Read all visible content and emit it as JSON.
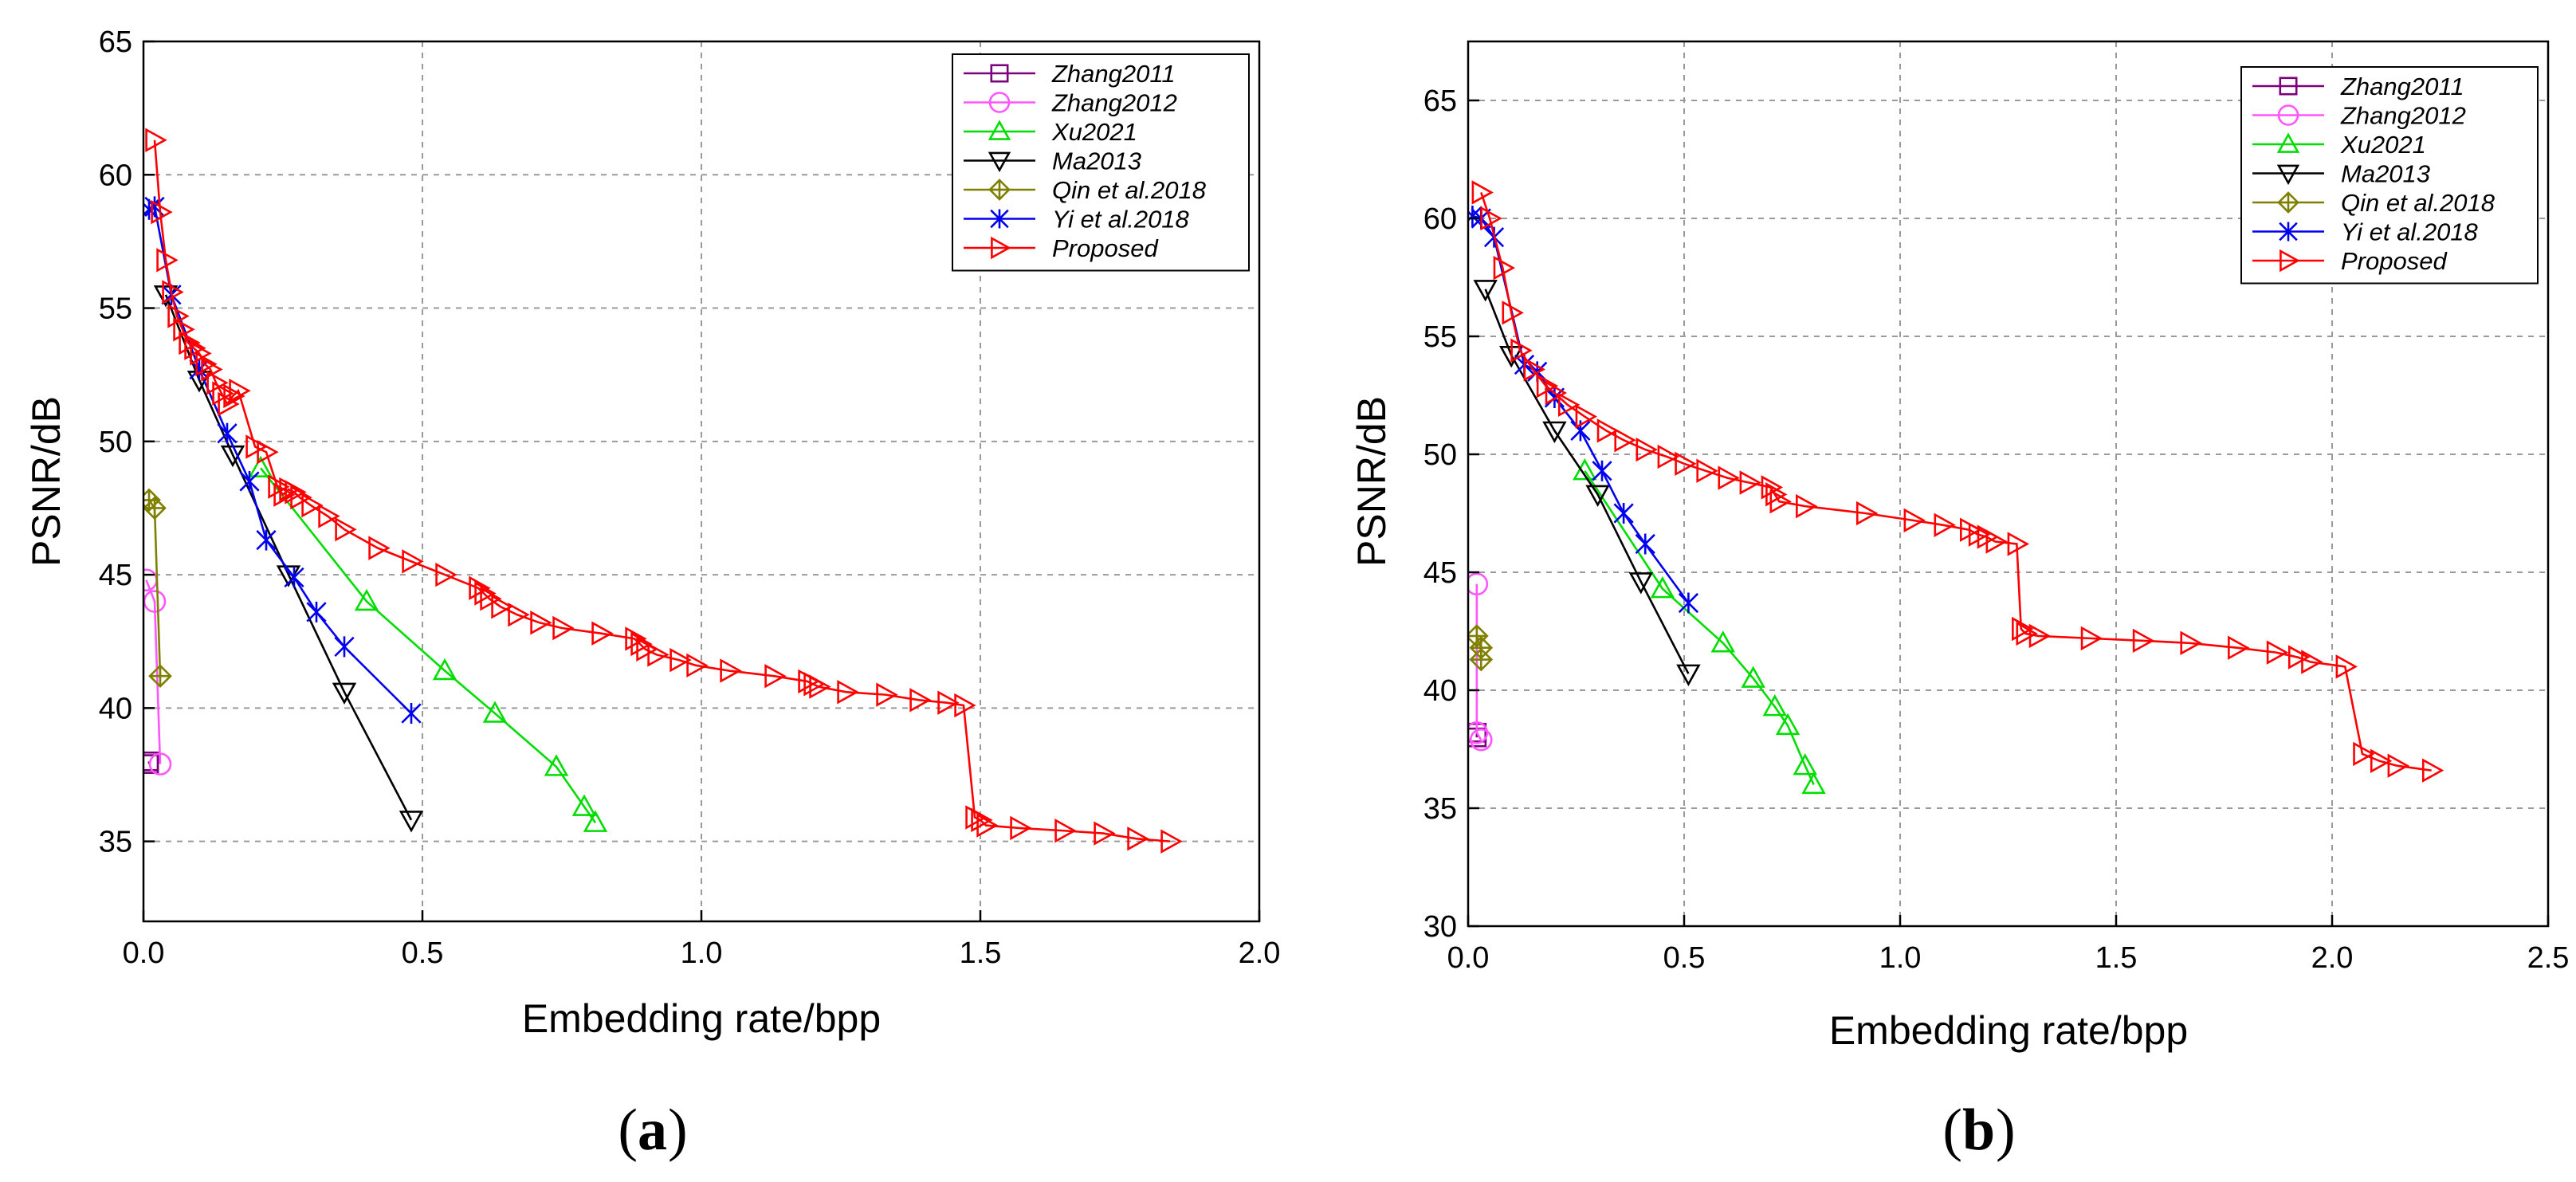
{
  "chart_data": [
    {
      "type": "line",
      "panel_label": "a",
      "xlabel": "Embedding rate/bpp",
      "ylabel": "PSNR/dB",
      "xlim": [
        0,
        2.0
      ],
      "ylim": [
        32,
        65
      ],
      "xticks": [
        0,
        0.5,
        1.0,
        1.5,
        2.0
      ],
      "xtick_labels": [
        "0.0",
        "0.5",
        "1.0",
        "1.5",
        "2.0"
      ],
      "yticks": [
        35,
        40,
        45,
        50,
        55,
        60,
        65
      ],
      "ytick_labels": [
        "35",
        "40",
        "45",
        "50",
        "55",
        "60",
        "65"
      ],
      "grid": true,
      "legend_position": "top-right",
      "series": [
        {
          "name": "Zhang2011",
          "color": "#7b007b",
          "marker": "square",
          "x": [
            0.01,
            0.01
          ],
          "y": [
            38.0,
            37.9
          ]
        },
        {
          "name": "Zhang2012",
          "color": "#ff55ff",
          "marker": "circle",
          "x": [
            0.005,
            0.02,
            0.03
          ],
          "y": [
            44.8,
            44.0,
            37.9
          ]
        },
        {
          "name": "Xu2021",
          "color": "#00dd00",
          "marker": "triangle-up",
          "x": [
            0.21,
            0.4,
            0.54,
            0.63,
            0.74,
            0.79,
            0.81
          ],
          "y": [
            49.0,
            44.0,
            41.4,
            39.8,
            37.8,
            36.3,
            35.7
          ]
        },
        {
          "name": "Ma2013",
          "color": "#000000",
          "marker": "triangle-down",
          "x": [
            0.04,
            0.1,
            0.16,
            0.26,
            0.36,
            0.48
          ],
          "y": [
            55.5,
            52.3,
            49.5,
            45.0,
            40.6,
            35.8
          ]
        },
        {
          "name": "Qin et al.2018",
          "color": "#808000",
          "marker": "diamond-plus",
          "x": [
            0.01,
            0.02,
            0.03
          ],
          "y": [
            47.8,
            47.5,
            41.2
          ]
        },
        {
          "name": "Yi et al.2018",
          "color": "#0000ee",
          "marker": "star",
          "x": [
            0.01,
            0.02,
            0.05,
            0.1,
            0.15,
            0.19,
            0.22,
            0.27,
            0.31,
            0.36,
            0.48
          ],
          "y": [
            58.7,
            58.8,
            55.5,
            52.7,
            50.3,
            48.5,
            46.3,
            44.9,
            43.6,
            42.3,
            39.8
          ]
        },
        {
          "name": "Proposed",
          "color": "#ff0000",
          "marker": "triangle-right",
          "x": [
            0.02,
            0.03,
            0.04,
            0.05,
            0.06,
            0.07,
            0.08,
            0.09,
            0.1,
            0.11,
            0.12,
            0.13,
            0.14,
            0.15,
            0.16,
            0.17,
            0.2,
            0.22,
            0.24,
            0.25,
            0.26,
            0.27,
            0.28,
            0.3,
            0.33,
            0.36,
            0.42,
            0.48,
            0.54,
            0.6,
            0.61,
            0.62,
            0.64,
            0.67,
            0.71,
            0.75,
            0.82,
            0.88,
            0.89,
            0.9,
            0.92,
            0.96,
            0.99,
            1.05,
            1.13,
            1.19,
            1.2,
            1.21,
            1.26,
            1.33,
            1.39,
            1.44,
            1.47,
            1.49,
            1.5,
            1.51,
            1.57,
            1.65,
            1.72,
            1.78,
            1.84
          ],
          "y": [
            61.3,
            58.6,
            56.8,
            55.6,
            54.7,
            54.2,
            53.7,
            53.5,
            53.3,
            52.9,
            52.7,
            52.2,
            51.8,
            51.4,
            51.7,
            51.9,
            49.8,
            49.6,
            48.3,
            48.0,
            48.2,
            48.1,
            47.9,
            47.6,
            47.2,
            46.7,
            46.0,
            45.5,
            45.0,
            44.5,
            44.3,
            44.1,
            43.8,
            43.5,
            43.2,
            43.0,
            42.8,
            42.6,
            42.4,
            42.2,
            42.0,
            41.8,
            41.6,
            41.4,
            41.2,
            41.0,
            40.9,
            40.8,
            40.6,
            40.5,
            40.3,
            40.2,
            40.1,
            35.9,
            35.8,
            35.6,
            35.5,
            35.4,
            35.3,
            35.1,
            35.0
          ]
        }
      ]
    },
    {
      "type": "line",
      "panel_label": "b",
      "xlabel": "Embedding rate/bpp",
      "ylabel": "PSNR/dB",
      "xlim": [
        0,
        2.5
      ],
      "ylim": [
        30,
        67.5
      ],
      "xticks": [
        0,
        0.5,
        1.0,
        1.5,
        2.0,
        2.5
      ],
      "xtick_labels": [
        "0.0",
        "0.5",
        "1.0",
        "1.5",
        "2.0",
        "2.5"
      ],
      "yticks": [
        30,
        35,
        40,
        45,
        50,
        55,
        60,
        65
      ],
      "ytick_labels": [
        "30",
        "35",
        "40",
        "45",
        "50",
        "55",
        "60",
        "65"
      ],
      "grid": true,
      "legend_position": "top-right",
      "series": [
        {
          "name": "Zhang2011",
          "color": "#7b007b",
          "marker": "square",
          "x": [
            0.02,
            0.02
          ],
          "y": [
            38.2,
            38.0
          ]
        },
        {
          "name": "Zhang2012",
          "color": "#ff55ff",
          "marker": "circle",
          "x": [
            0.02,
            0.02,
            0.03
          ],
          "y": [
            44.5,
            38.2,
            37.9
          ]
        },
        {
          "name": "Xu2021",
          "color": "#00dd00",
          "marker": "triangle-up",
          "x": [
            0.27,
            0.45,
            0.59,
            0.66,
            0.71,
            0.74,
            0.78,
            0.8
          ],
          "y": [
            49.3,
            44.3,
            42.0,
            40.5,
            39.3,
            38.5,
            36.8,
            36.0
          ]
        },
        {
          "name": "Ma2013",
          "color": "#000000",
          "marker": "triangle-down",
          "x": [
            0.04,
            0.1,
            0.2,
            0.3,
            0.4,
            0.51
          ],
          "y": [
            57.0,
            54.2,
            51.0,
            48.3,
            44.6,
            40.7
          ]
        },
        {
          "name": "Qin et al.2018",
          "color": "#808000",
          "marker": "diamond-plus",
          "x": [
            0.02,
            0.03,
            0.03
          ],
          "y": [
            42.3,
            41.8,
            41.3
          ]
        },
        {
          "name": "Yi et al.2018",
          "color": "#0000ee",
          "marker": "star",
          "x": [
            0.01,
            0.03,
            0.06,
            0.13,
            0.16,
            0.2,
            0.26,
            0.31,
            0.36,
            0.41,
            0.51
          ],
          "y": [
            60.1,
            60.0,
            59.2,
            53.8,
            53.5,
            52.4,
            51.0,
            49.3,
            47.5,
            46.2,
            43.7
          ]
        },
        {
          "name": "Proposed",
          "color": "#ff0000",
          "marker": "triangle-right",
          "x": [
            0.03,
            0.05,
            0.08,
            0.1,
            0.12,
            0.15,
            0.18,
            0.2,
            0.23,
            0.27,
            0.32,
            0.36,
            0.41,
            0.46,
            0.5,
            0.55,
            0.6,
            0.65,
            0.7,
            0.71,
            0.72,
            0.78,
            0.92,
            1.03,
            1.1,
            1.16,
            1.18,
            1.2,
            1.22,
            1.27,
            1.28,
            1.29,
            1.32,
            1.44,
            1.56,
            1.67,
            1.78,
            1.87,
            1.92,
            1.95,
            2.03,
            2.07,
            2.11,
            2.15,
            2.23
          ],
          "y": [
            61.1,
            60.0,
            57.9,
            56.0,
            54.4,
            53.6,
            52.9,
            52.6,
            52.1,
            51.6,
            51.0,
            50.6,
            50.2,
            49.9,
            49.6,
            49.3,
            49.0,
            48.8,
            48.6,
            48.3,
            48.0,
            47.8,
            47.5,
            47.2,
            47.0,
            46.8,
            46.6,
            46.5,
            46.3,
            46.2,
            42.6,
            42.4,
            42.3,
            42.2,
            42.1,
            42.0,
            41.8,
            41.6,
            41.4,
            41.2,
            41.0,
            37.3,
            37.0,
            36.8,
            36.6
          ]
        }
      ]
    }
  ]
}
